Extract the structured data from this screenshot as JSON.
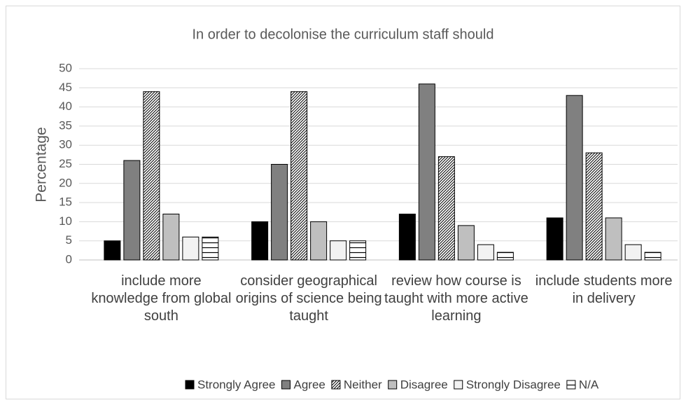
{
  "chart_data": {
    "type": "bar",
    "title": "In order to decolonise the curriculum staff should",
    "y_label": "Percentage",
    "categories": [
      "include more knowledge from global south",
      "consider geographical origins of science being taught",
      "review how course is taught with more active learning",
      "include students more in delivery"
    ],
    "series": [
      {
        "name": "Strongly Agree",
        "color": "#000000",
        "values": [
          5,
          10,
          12,
          11
        ]
      },
      {
        "name": "Agree",
        "color": "#808080",
        "values": [
          26,
          25,
          46,
          43
        ]
      },
      {
        "name": "Neither",
        "color": "#ffffff",
        "pattern": "diagonal",
        "values": [
          44,
          44,
          27,
          28
        ]
      },
      {
        "name": "Disagree",
        "color": "#bfbfbf",
        "values": [
          12,
          10,
          9,
          11
        ]
      },
      {
        "name": "Strongly Disagree",
        "color": "#f2f2f2",
        "values": [
          6,
          5,
          4,
          4
        ]
      },
      {
        "name": "N/A",
        "color": "#ffffff",
        "pattern": "horizontal",
        "values": [
          6,
          5,
          2,
          2
        ]
      }
    ],
    "ylim": [
      0,
      50
    ],
    "yticks": [
      0,
      5,
      10,
      15,
      20,
      25,
      30,
      35,
      40,
      45,
      50
    ],
    "grid": true,
    "legend": "bottom"
  }
}
